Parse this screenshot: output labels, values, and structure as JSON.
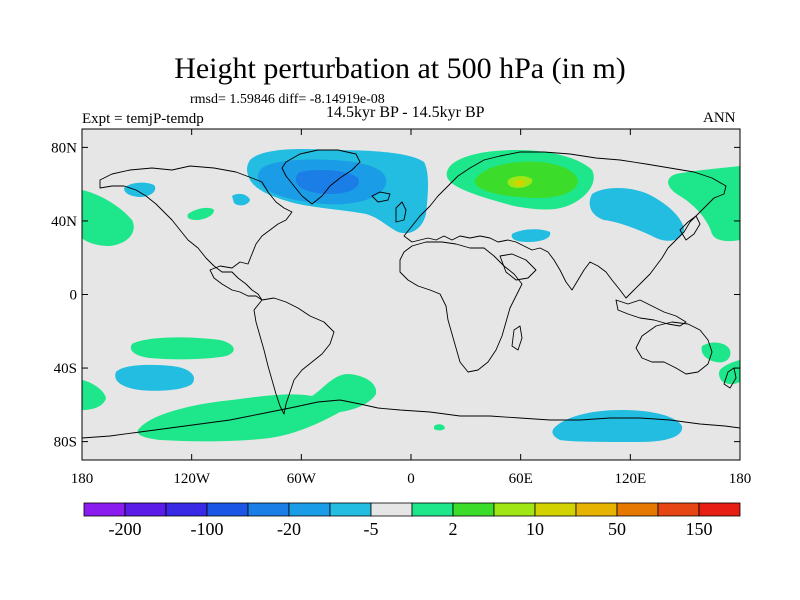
{
  "title": "Height perturbation at 500 hPa (in m)",
  "stats": "rmsd= 1.59846 diff= -8.14919e-08",
  "left_label": "Expt = temjP-temdp",
  "center_label": "14.5kyr BP - 14.5kyr BP",
  "right_label": "ANN",
  "map": {
    "lon_labels": [
      "180",
      "120W",
      "60W",
      "0",
      "60E",
      "120E",
      "180"
    ],
    "lat_labels": [
      "80N",
      "40N",
      "0",
      "40S",
      "80S"
    ],
    "background_color": "#e6e6e6"
  },
  "colorbar": {
    "colors": [
      "#8a1cf0",
      "#5a1ce6",
      "#3a2ae6",
      "#1a55e6",
      "#1a7ee6",
      "#1a9ce6",
      "#22bde0",
      "#e6e6e6",
      "#1ee68a",
      "#3cdc2a",
      "#a0e614",
      "#d2d200",
      "#e6b400",
      "#e67800",
      "#e64614",
      "#e61e14"
    ],
    "labels": [
      "-200",
      "-100",
      "-20",
      "-5",
      "2",
      "10",
      "50",
      "150"
    ]
  }
}
